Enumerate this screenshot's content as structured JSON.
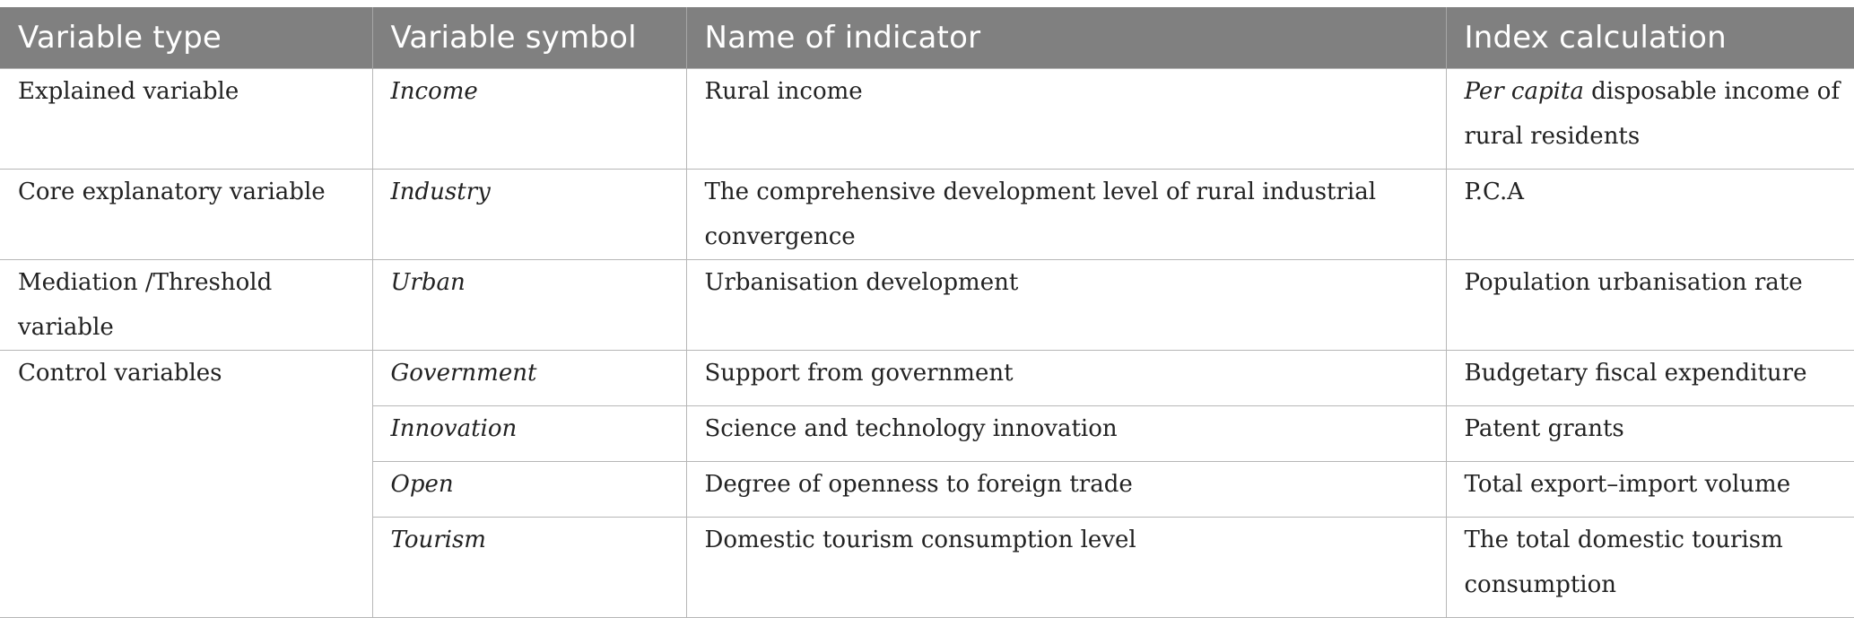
{
  "table": {
    "headers": [
      "Variable type",
      "Variable symbol",
      "Name of indicator",
      "Index calculation"
    ],
    "rows": [
      {
        "type": "Explained variable",
        "symbol": "Income",
        "name": "Rural income",
        "calc_em": "Per capita",
        "calc_rest": " disposable income of rural residents"
      },
      {
        "type": "Core explanatory variable",
        "symbol": "Industry",
        "name": "The comprehensive development level of rural industrial convergence",
        "calc": "P.C.A"
      },
      {
        "type": "Mediation /Threshold variable",
        "symbol": "Urban",
        "name": "Urbanisation development",
        "calc": "Population urbanisation rate"
      },
      {
        "type": "Control variables",
        "symbol": "Government",
        "name": "Support from government",
        "calc": "Budgetary fiscal expenditure"
      },
      {
        "symbol": "Innovation",
        "name": "Science and technology innovation",
        "calc": "Patent grants"
      },
      {
        "symbol": "Open",
        "name": "Degree of openness to foreign trade",
        "calc": "Total export–import volume"
      },
      {
        "symbol": "Tourism",
        "name": "Domestic tourism consumption level",
        "calc": "The total domestic tourism consumption"
      }
    ]
  }
}
